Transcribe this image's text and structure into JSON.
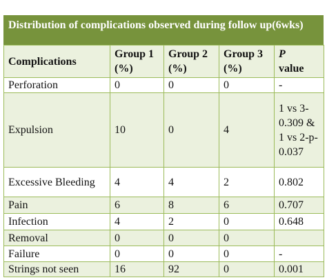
{
  "table": {
    "caption": "Distribution of complications observed during follow up(6wks)",
    "header": [
      "Complications",
      "Group 1 (%)",
      "Group 2 (%)",
      "Group 3 (%)",
      [
        "P",
        "value"
      ]
    ],
    "rows": [
      [
        "Perforation",
        "0",
        "0",
        "0",
        "-"
      ],
      [
        "Expulsion",
        "10",
        "0",
        "4",
        "1 vs 3-0.309 & 1 vs 2-p-0.037"
      ],
      [
        "Excessive Bleeding",
        "4",
        "4",
        "2",
        "0.802"
      ],
      [
        "Pain",
        "6",
        "8",
        "6",
        "0.707"
      ],
      [
        "Infection",
        "4",
        "2",
        "0",
        "0.648"
      ],
      [
        "Removal",
        "0",
        "0",
        "0",
        ""
      ],
      [
        "Failure",
        "0",
        "0",
        "0",
        "-"
      ],
      [
        "Strings not seen",
        "16",
        "92",
        "0",
        "0.001"
      ]
    ]
  }
}
